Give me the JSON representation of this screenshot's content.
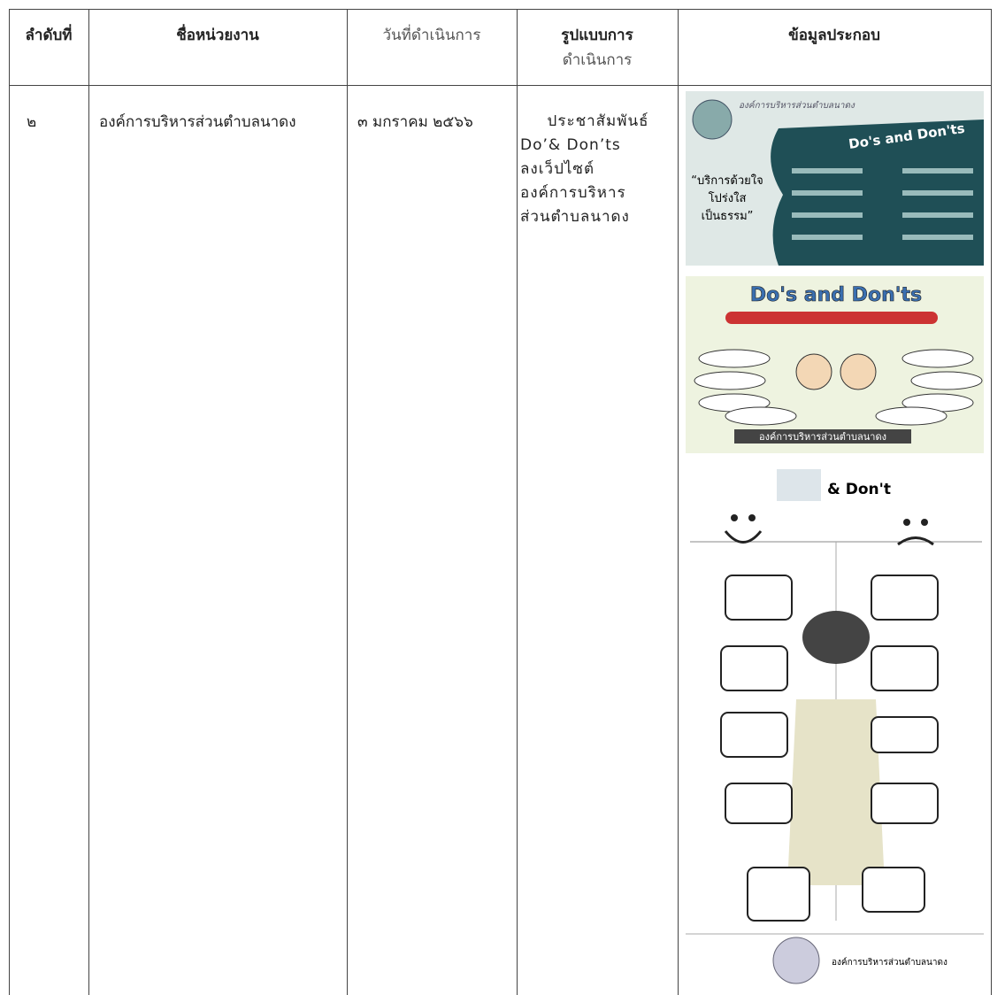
{
  "table": {
    "headers": [
      "ลำดับที่",
      "ชื่อหน่วยงาน",
      "วันที่ดำเนินการ",
      [
        "รูปแบบการ",
        "ดำเนินการ"
      ],
      "ข้อมูลประกอบ"
    ],
    "rows": [
      [
        "๒",
        "องค์การบริหารส่วนตำบลนาดง",
        "๓ มกราคม ๒๕๖๖",
        [
          "ประชาสัมพันธ์",
          "Do’& Don’ts",
          "ลงเว็ปไซต์",
          "องค์การบริหาร",
          "ส่วนตำบลนาดง"
        ]
      ]
    ]
  },
  "images": [
    {
      "title": "องค์การบริหารส่วนตำบลนาดง",
      "heading": "Do's and Don'ts",
      "slogan": [
        "“บริการด้วยใจ",
        "โปร่งใส",
        "เป็นธรรม”"
      ]
    },
    {
      "heading": "Do's and Don'ts",
      "footer": "องค์การบริหารส่วนตำบลนาดง"
    },
    {
      "heading": "& Don't",
      "footer": "องค์การบริหารส่วนตำบลนาดง"
    }
  ]
}
